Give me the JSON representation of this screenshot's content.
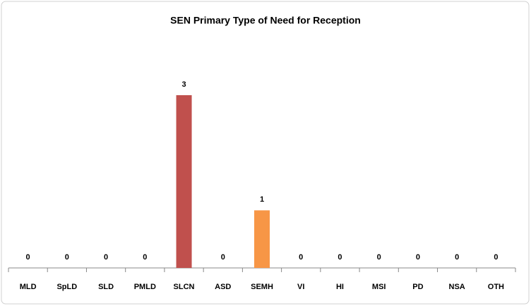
{
  "chart_data": {
    "type": "bar",
    "title": "SEN Primary Type of Need for Reception",
    "categories": [
      "MLD",
      "SpLD",
      "SLD",
      "PMLD",
      "SLCN",
      "ASD",
      "SEMH",
      "VI",
      "HI",
      "MSI",
      "PD",
      "NSA",
      "OTH"
    ],
    "values": [
      0,
      0,
      0,
      0,
      3,
      0,
      1,
      0,
      0,
      0,
      0,
      0,
      0
    ],
    "colors": [
      null,
      null,
      null,
      null,
      "#c0504d",
      null,
      "#f79646",
      null,
      null,
      null,
      null,
      null,
      null
    ]
  }
}
